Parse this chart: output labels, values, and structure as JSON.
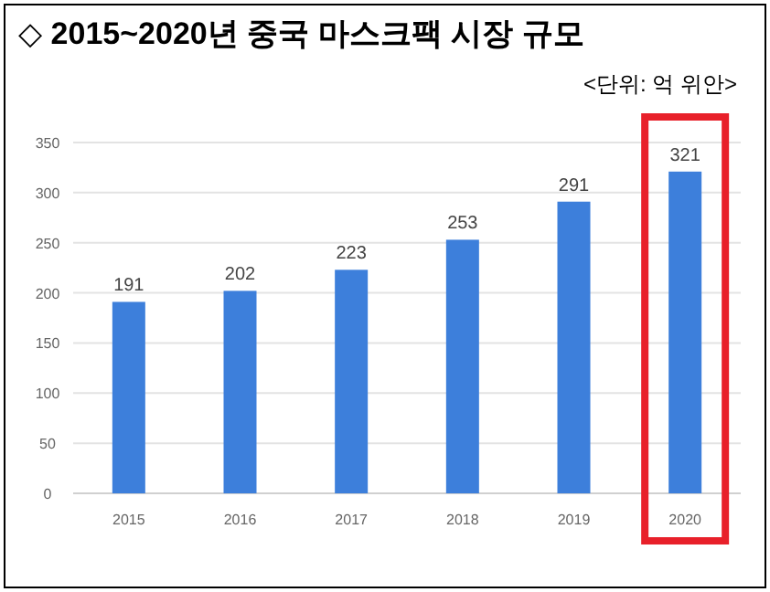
{
  "chart_data": {
    "type": "bar",
    "title": "◇ 2015~2020년 중국 마스크팩 시장 규모",
    "subtitle": "<단위: 억 위안>",
    "categories": [
      "2015",
      "2016",
      "2017",
      "2018",
      "2019",
      "2020"
    ],
    "values": [
      191,
      202,
      223,
      253,
      291,
      321
    ],
    "color": "#3d7fdb",
    "ylim": [
      0,
      350
    ],
    "yticks": [
      0,
      50,
      100,
      150,
      200,
      250,
      300,
      350
    ],
    "grid": "y",
    "data_labels": true
  }
}
